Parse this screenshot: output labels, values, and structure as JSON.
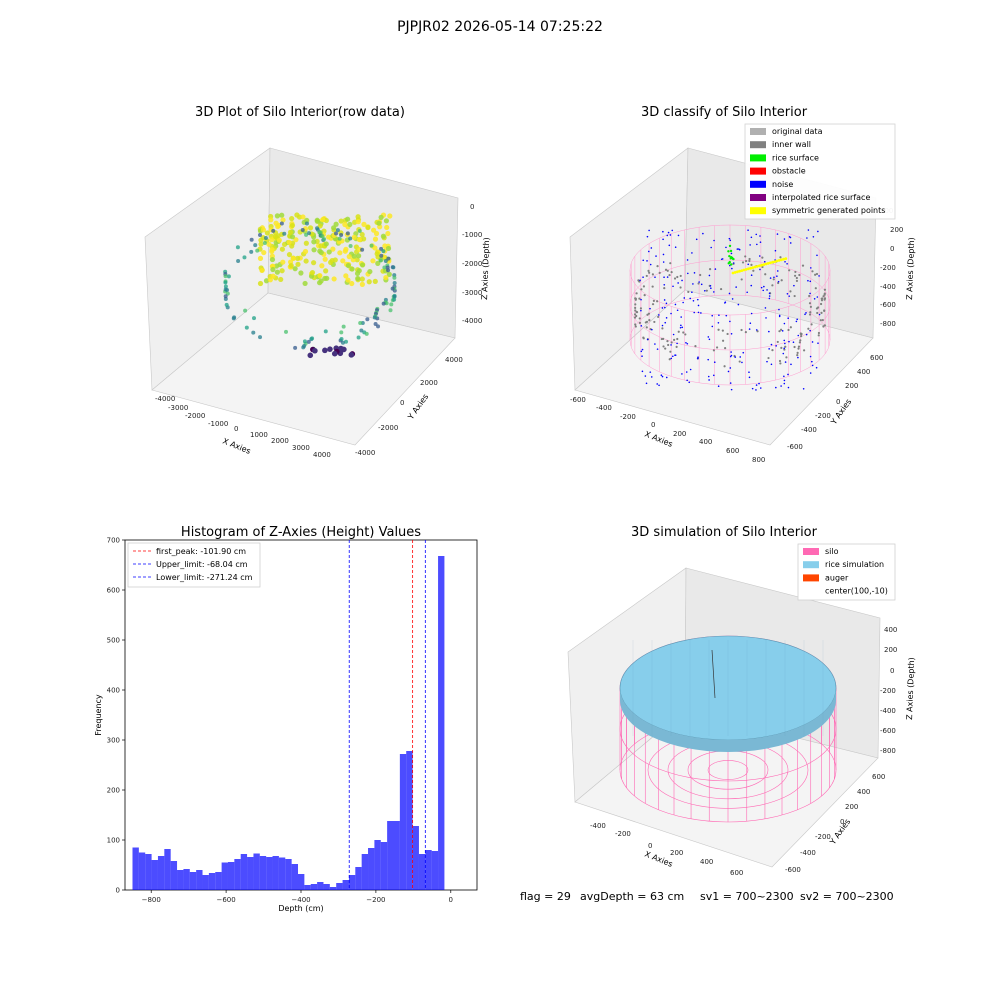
{
  "suptitle": "PJPJR02 2026-05-14 07:25:22",
  "panel_raw": {
    "title": "3D Plot of Silo Interior(row data)",
    "xlabel": "X Axies",
    "ylabel": "Y Axies",
    "zlabel": "Z Axies (Depth)",
    "xticks": [
      "-4000",
      "-3000",
      "-2000",
      "-1000",
      "0",
      "1000",
      "2000",
      "3000",
      "4000"
    ],
    "yticks": [
      "-4000",
      "-2000",
      "0",
      "2000",
      "4000"
    ],
    "zticks": [
      "0",
      "-1000",
      "-2000",
      "-3000",
      "-4000"
    ]
  },
  "panel_classify": {
    "title": "3D classify of Silo Interior",
    "xlabel": "X Axies",
    "ylabel": "Y Axies",
    "zlabel": "Z Axies (Depth)",
    "xticks": [
      "-600",
      "-400",
      "-200",
      "0",
      "200",
      "400",
      "600",
      "800"
    ],
    "yticks": [
      "-600",
      "-400",
      "-200",
      "0",
      "200",
      "400",
      "600"
    ],
    "zticks": [
      "400",
      "200",
      "0",
      "-200",
      "-400",
      "-600",
      "-800"
    ],
    "legend": [
      {
        "label": "original data",
        "color": "#b0b0b0"
      },
      {
        "label": "inner wall",
        "color": "#808080"
      },
      {
        "label": "rice surface",
        "color": "#00ee00"
      },
      {
        "label": "obstacle",
        "color": "#ff0000"
      },
      {
        "label": "noise",
        "color": "#0000ff"
      },
      {
        "label": "interpolated rice surface",
        "color": "#800080"
      },
      {
        "label": "symmetric generated points",
        "color": "#ffff00"
      }
    ]
  },
  "panel_sim": {
    "title": "3D simulation of Silo Interior",
    "xlabel": "X Axies",
    "ylabel": "Y Axies",
    "zlabel": "Z Axies (Depth)",
    "xticks": [
      "-400",
      "-200",
      "0",
      "200",
      "400",
      "600"
    ],
    "yticks": [
      "-600",
      "-400",
      "-200",
      "0",
      "200",
      "400",
      "600"
    ],
    "zticks": [
      "400",
      "200",
      "0",
      "-200",
      "-400",
      "-600",
      "-800"
    ],
    "legend": [
      {
        "label": "silo",
        "color": "#ff69b4"
      },
      {
        "label": "rice simulation",
        "color": "#87ceeb"
      },
      {
        "label": "auger",
        "color": "#ff4500"
      },
      {
        "label": "center(100,-10)",
        "color": "none"
      }
    ]
  },
  "footer": {
    "flag": "flag = 29",
    "avgdepth": "avgDepth = 63 cm",
    "sv1": "sv1 = 700~2300",
    "sv2": "sv2 = 700~2300"
  },
  "chart_data": {
    "type": "bar",
    "title": "Histogram of Z-Axies (Height) Values",
    "xlabel": "Depth (cm)",
    "ylabel": "Frequency",
    "xlim": [
      -870,
      70
    ],
    "ylim": [
      0,
      700
    ],
    "xticks": [
      -800,
      -600,
      -400,
      -200,
      0
    ],
    "yticks": [
      0,
      100,
      200,
      300,
      400,
      500,
      600,
      700
    ],
    "bar_color": "#0000ff",
    "bin_start": -850,
    "bin_width": 17,
    "values": [
      85,
      75,
      72,
      60,
      68,
      82,
      58,
      40,
      42,
      36,
      40,
      30,
      34,
      36,
      55,
      56,
      62,
      72,
      66,
      73,
      68,
      66,
      68,
      65,
      62,
      52,
      32,
      10,
      12,
      16,
      12,
      6,
      14,
      20,
      30,
      46,
      72,
      84,
      100,
      96,
      138,
      138,
      272,
      278,
      128,
      72,
      80,
      78,
      668
    ],
    "lines": [
      {
        "label": "first_peak: -101.90 cm",
        "x": -101.9,
        "color": "#ff0000"
      },
      {
        "label": "Upper_limit: -68.04 cm",
        "x": -68.04,
        "color": "#0000ff"
      },
      {
        "label": "Lower_limit: -271.24 cm",
        "x": -271.24,
        "color": "#0000ff"
      }
    ]
  }
}
